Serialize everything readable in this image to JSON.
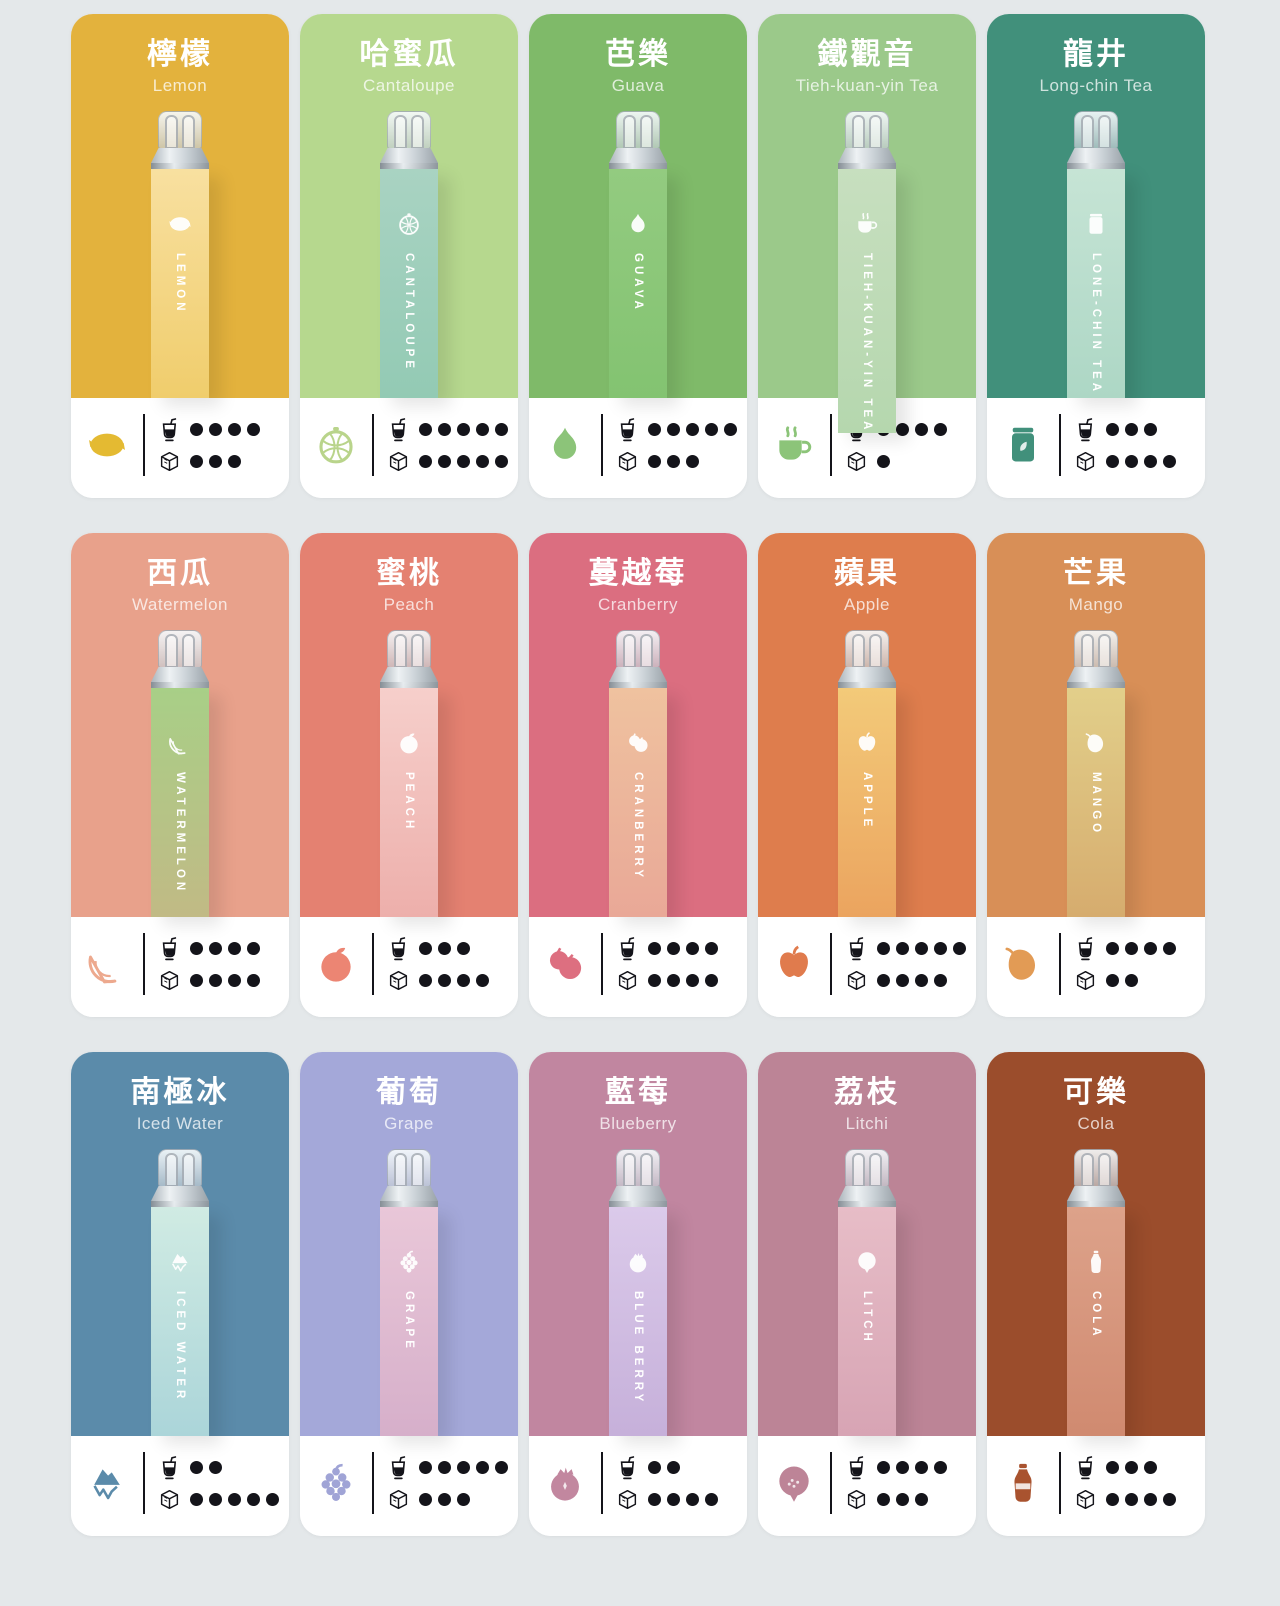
{
  "palette": {
    "page_bg": "#e4e8ea",
    "ink": "#14141a",
    "title_text": "#ffffff",
    "subtitle_text": "rgba(255,255,255,0.75)"
  },
  "meters_legend": {
    "sweetness_icon": "drink-icon",
    "ice_icon": "ice-cube-icon",
    "max_dots_shown": 5
  },
  "cards": [
    {
      "name_zh": "檸檬",
      "name_en": "Lemon",
      "device_label": "LEMON",
      "icon": "lemon",
      "sweetness": 4,
      "ice": 3,
      "colors": {
        "card": "#e3b23d",
        "device_top": "#f8e0a0",
        "device_bottom": "#f0cd6c",
        "fruit": "#e4ba32"
      }
    },
    {
      "name_zh": "哈蜜瓜",
      "name_en": "Cantaloupe",
      "device_label": "CANTALOUPE",
      "icon": "melon",
      "sweetness": 5,
      "ice": 5,
      "colors": {
        "card": "#b6d88e",
        "device_top": "#a9d3c2",
        "device_bottom": "#93cab4",
        "fruit": "#b9d48b"
      }
    },
    {
      "name_zh": "芭樂",
      "name_en": "Guava",
      "device_label": "GUAVA",
      "icon": "guava",
      "sweetness": 5,
      "ice": 3,
      "colors": {
        "card": "#7fba69",
        "device_top": "#93cb80",
        "device_bottom": "#83c371",
        "fruit": "#8cc479"
      }
    },
    {
      "name_zh": "鐵觀音",
      "name_en": "Tieh-kuan-yin Tea",
      "device_label": "TIEH-KUAN-YIN TEA",
      "icon": "teacup",
      "sweetness": 4,
      "ice": 1,
      "colors": {
        "card": "#9bc98a",
        "device_top": "#c7dfbf",
        "device_bottom": "#b5d7ae",
        "fruit": "#8cc479"
      }
    },
    {
      "name_zh": "龍井",
      "name_en": "Long-chin Tea",
      "device_label": "LONE-CHIN TEA",
      "icon": "teatin",
      "sweetness": 3,
      "ice": 4,
      "colors": {
        "card": "#41907b",
        "device_top": "#c6e4d5",
        "device_bottom": "#add7c5",
        "fruit": "#41907b"
      }
    },
    {
      "name_zh": "西瓜",
      "name_en": "Watermelon",
      "device_label": "WATERMELON",
      "icon": "watermelon",
      "sweetness": 4,
      "ice": 4,
      "colors": {
        "card": "#e8a18b",
        "device_top": "#a8cf87",
        "device_bottom": "#c1ba85",
        "fruit": "#eda98e"
      }
    },
    {
      "name_zh": "蜜桃",
      "name_en": "Peach",
      "device_label": "PEACH",
      "icon": "peach",
      "sweetness": 3,
      "ice": 4,
      "colors": {
        "card": "#e48171",
        "device_top": "#f6cfcb",
        "device_bottom": "#edafab",
        "fruit": "#ec8573"
      }
    },
    {
      "name_zh": "蔓越莓",
      "name_en": "Cranberry",
      "device_label": "CRANBERRY",
      "icon": "berries",
      "sweetness": 4,
      "ice": 4,
      "colors": {
        "card": "#db6e80",
        "device_top": "#efc29f",
        "device_bottom": "#e9a897",
        "fruit": "#dd6f80"
      }
    },
    {
      "name_zh": "蘋果",
      "name_en": "Apple",
      "device_label": "APPLE",
      "icon": "apple",
      "sweetness": 5,
      "ice": 4,
      "colors": {
        "card": "#de7d4d",
        "device_top": "#f3ca79",
        "device_bottom": "#eba45f",
        "fruit": "#e07b4d"
      }
    },
    {
      "name_zh": "芒果",
      "name_en": "Mango",
      "device_label": "MANGO",
      "icon": "mango",
      "sweetness": 4,
      "ice": 2,
      "colors": {
        "card": "#d88f57",
        "device_top": "#e2cf8a",
        "device_bottom": "#d6ac6e",
        "fruit": "#e29b55"
      }
    },
    {
      "name_zh": "南極冰",
      "name_en": "Iced Water",
      "device_label": "ICED WATER",
      "icon": "iceberg",
      "sweetness": 2,
      "ice": 5,
      "colors": {
        "card": "#5b8baa",
        "device_top": "#d0ebe3",
        "device_bottom": "#abd5d9",
        "fruit": "#5b8baa"
      }
    },
    {
      "name_zh": "葡萄",
      "name_en": "Grape",
      "device_label": "GRAPE",
      "icon": "grape",
      "sweetness": 5,
      "ice": 3,
      "colors": {
        "card": "#a4a8d9",
        "device_top": "#e9c7d8",
        "device_bottom": "#d6afca",
        "fruit": "#a0a4d6"
      }
    },
    {
      "name_zh": "藍莓",
      "name_en": "Blueberry",
      "device_label": "BLUE BERRY",
      "icon": "blueberry",
      "sweetness": 2,
      "ice": 4,
      "colors": {
        "card": "#c186a0",
        "device_top": "#dbcaea",
        "device_bottom": "#c6b0da",
        "fruit": "#c2879f"
      }
    },
    {
      "name_zh": "荔枝",
      "name_en": "Litchi",
      "device_label": "LITCH",
      "icon": "litchi",
      "sweetness": 4,
      "ice": 3,
      "colors": {
        "card": "#bc8496",
        "device_top": "#e7bdc7",
        "device_bottom": "#d7a4b4",
        "fruit": "#bd8497"
      }
    },
    {
      "name_zh": "可樂",
      "name_en": "Cola",
      "device_label": "COLA",
      "icon": "cola",
      "sweetness": 3,
      "ice": 4,
      "colors": {
        "card": "#9b4d2c",
        "device_top": "#dda28a",
        "device_bottom": "#d08a70",
        "fruit": "#a9532f"
      }
    }
  ]
}
